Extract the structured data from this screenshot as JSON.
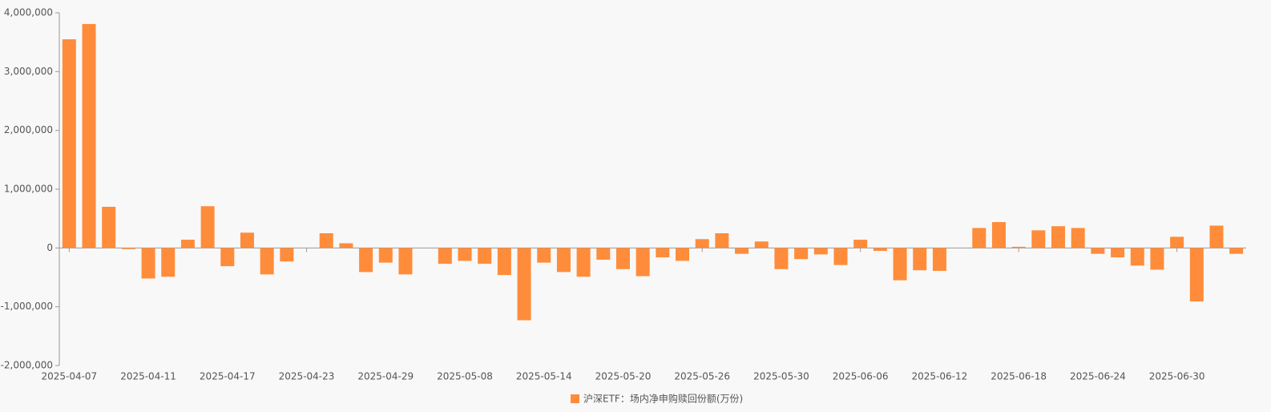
{
  "chart_data": {
    "type": "bar",
    "categories": [
      "2025-04-07",
      null,
      null,
      null,
      "2025-04-11",
      null,
      null,
      null,
      "2025-04-17",
      null,
      null,
      null,
      "2025-04-23",
      null,
      null,
      null,
      "2025-04-29",
      null,
      null,
      null,
      "2025-05-08",
      null,
      null,
      null,
      "2025-05-14",
      null,
      null,
      null,
      "2025-05-20",
      null,
      null,
      null,
      "2025-05-26",
      null,
      null,
      null,
      "2025-05-30",
      null,
      null,
      null,
      "2025-06-06",
      null,
      null,
      null,
      "2025-06-12",
      null,
      null,
      null,
      "2025-06-18",
      null,
      null,
      null,
      "2025-06-24",
      null,
      null,
      null,
      "2025-06-30",
      null,
      null,
      null
    ],
    "series": [
      {
        "name": "沪深ETF：场内净申购赎回份额(万份)",
        "color": "#ff8c3a",
        "values": [
          3550000,
          3810000,
          700000,
          -20000,
          -520000,
          -490000,
          140000,
          710000,
          -310000,
          260000,
          -450000,
          -230000,
          null,
          250000,
          80000,
          -410000,
          -250000,
          -450000,
          null,
          -270000,
          -220000,
          -270000,
          -460000,
          -1230000,
          -250000,
          -410000,
          -490000,
          -200000,
          -360000,
          -480000,
          -160000,
          -220000,
          150000,
          250000,
          -100000,
          110000,
          -360000,
          -190000,
          -110000,
          -290000,
          140000,
          -50000,
          -550000,
          -380000,
          -390000,
          null,
          340000,
          440000,
          20000,
          300000,
          370000,
          340000,
          -100000,
          -160000,
          -300000,
          -370000,
          190000,
          -910000,
          380000,
          -100000
        ]
      }
    ],
    "ylim": [
      -2000000,
      4000000
    ],
    "yticks": [
      {
        "value": -2000000,
        "label": "-2,000,000"
      },
      {
        "value": -1000000,
        "label": "-1,000,000"
      },
      0,
      {
        "value": 1000000,
        "label": "1,000,000"
      },
      {
        "value": 2000000,
        "label": "2,000,000"
      },
      {
        "value": 3000000,
        "label": "3,000,000"
      },
      {
        "value": 4000000,
        "label": "4,000,000"
      }
    ],
    "legend": "bottom"
  }
}
